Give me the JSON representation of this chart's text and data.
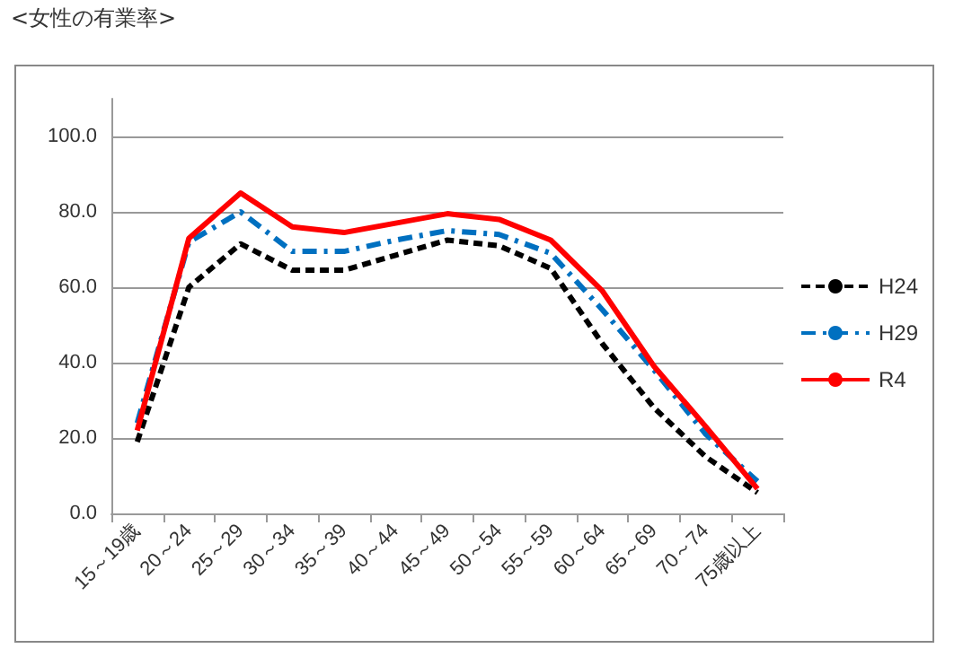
{
  "chart_data": {
    "type": "line",
    "title": "<女性の有業率>",
    "categories": [
      "15～19歳",
      "20～24",
      "25～29",
      "30～34",
      "35～39",
      "40～44",
      "45～49",
      "50～54",
      "55～59",
      "60～64",
      "65～69",
      "70～74",
      "75歳以上"
    ],
    "series": [
      {
        "name": "H24",
        "color": "#000000",
        "line_style": "dashed",
        "values": [
          19,
          60,
          71.5,
          64.5,
          64.5,
          68.5,
          72.5,
          71,
          65,
          45,
          28,
          15,
          5.5
        ]
      },
      {
        "name": "H29",
        "color": "#0070c0",
        "line_style": "dashdot",
        "values": [
          24,
          72,
          80,
          69.5,
          69.5,
          72.5,
          75,
          74,
          69,
          54,
          38,
          21,
          8.5
        ]
      },
      {
        "name": "R4",
        "color": "#ff0000",
        "line_style": "solid",
        "values": [
          22,
          73,
          85,
          76,
          74.5,
          77,
          79.5,
          78,
          72.5,
          59,
          39,
          23,
          6.5
        ]
      }
    ],
    "ylim": [
      0,
      110
    ],
    "yticks": [
      {
        "value": 0,
        "label": "0.0"
      },
      {
        "value": 20,
        "label": "20.0"
      },
      {
        "value": 40,
        "label": "40.0"
      },
      {
        "value": 60,
        "label": "60.0"
      },
      {
        "value": 80,
        "label": "80.0"
      },
      {
        "value": 100,
        "label": "100.0"
      }
    ],
    "grid": "y",
    "legend": "right",
    "marker": "none"
  }
}
